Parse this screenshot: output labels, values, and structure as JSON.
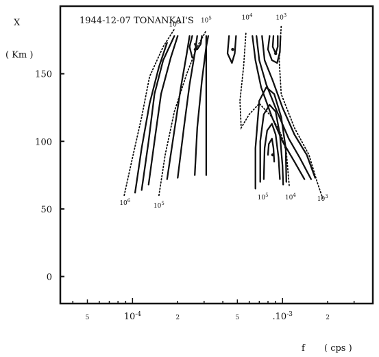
{
  "chart_data": {
    "type": "contour",
    "title": "1944-12-07  TONANKAI'S",
    "ylabel": "X",
    "ylabel_unit": "( Km )",
    "xlabel": "f",
    "xlabel_unit": "( cps )",
    "x_scale": "log",
    "ylim": [
      -20,
      200
    ],
    "y_ticks": [
      0,
      50,
      100,
      150
    ],
    "x_tick_labels": [
      "5",
      "10-4",
      "2",
      "5",
      ".10-3",
      "2"
    ],
    "x_ticks_cps": [
      5e-05,
      0.0001,
      0.0002,
      0.0005,
      0.001,
      0.002
    ],
    "xlim_cps": [
      3.3e-05,
      0.004
    ],
    "grid": false,
    "contour_levels": [
      1000,
      10000,
      100000,
      1000000
    ],
    "level_labels_top": [
      {
        "label": "106",
        "f": 0.00019,
        "x": 185
      },
      {
        "label": "105",
        "f": 0.00031,
        "x": 188
      },
      {
        "label": "104",
        "f": 0.00058,
        "x": 190
      },
      {
        "label": "103",
        "f": 0.00098,
        "x": 190
      }
    ],
    "level_labels_bottom": [
      {
        "label": "106",
        "f": 8.9e-05,
        "x": 53
      },
      {
        "label": "105",
        "f": 0.00015,
        "x": 51
      },
      {
        "label": "105",
        "f": 0.00074,
        "x": 57
      },
      {
        "label": "104",
        "f": 0.00113,
        "x": 57
      },
      {
        "label": "103",
        "f": 0.00185,
        "x": 56
      }
    ],
    "dashed_contours": [
      {
        "level": "106",
        "points": [
          [
            8.8e-05,
            60
          ],
          [
            0.0001,
            88
          ],
          [
            0.000115,
            118
          ],
          [
            0.00013,
            148
          ],
          [
            0.00016,
            170
          ],
          [
            0.00019,
            183
          ]
        ]
      },
      {
        "level": "105",
        "points": [
          [
            0.00015,
            60
          ],
          [
            0.000165,
            90
          ],
          [
            0.00019,
            122
          ],
          [
            0.00023,
            150
          ],
          [
            0.00027,
            170
          ],
          [
            0.00031,
            182
          ]
        ]
      },
      {
        "level": "104",
        "points": [
          [
            0.00057,
            180
          ],
          [
            0.00055,
            155
          ],
          [
            0.00052,
            130
          ],
          [
            0.00053,
            110
          ],
          [
            0.0006,
            120
          ],
          [
            0.0007,
            128
          ],
          [
            0.00085,
            118
          ],
          [
            0.00098,
            105
          ],
          [
            0.00106,
            92
          ],
          [
            0.00111,
            66
          ]
        ]
      },
      {
        "level": "103",
        "points": [
          [
            0.00098,
            185
          ],
          [
            0.00095,
            160
          ],
          [
            0.00098,
            135
          ],
          [
            0.0012,
            110
          ],
          [
            0.0015,
            90
          ],
          [
            0.0017,
            70
          ],
          [
            0.00185,
            58
          ]
        ]
      }
    ],
    "solid_contours": [
      {
        "points": [
          [
            0.000104,
            62
          ],
          [
            0.000115,
            95
          ],
          [
            0.00013,
            128
          ],
          [
            0.00015,
            155
          ],
          [
            0.00017,
            173
          ]
        ]
      },
      {
        "points": [
          [
            0.000115,
            64
          ],
          [
            0.000128,
            100
          ],
          [
            0.00014,
            135
          ],
          [
            0.00016,
            160
          ],
          [
            0.00019,
            178
          ]
        ]
      },
      {
        "points": [
          [
            0.000128,
            68
          ],
          [
            0.00014,
            100
          ],
          [
            0.000155,
            135
          ],
          [
            0.00018,
            162
          ],
          [
            0.0002,
            178
          ]
        ]
      },
      {
        "points": [
          [
            0.00017,
            72
          ],
          [
            0.00019,
            108
          ],
          [
            0.00021,
            140
          ],
          [
            0.00023,
            165
          ],
          [
            0.00024,
            178
          ]
        ]
      },
      {
        "points": [
          [
            0.0002,
            73
          ],
          [
            0.00022,
            110
          ],
          [
            0.00024,
            142
          ],
          [
            0.00026,
            165
          ],
          [
            0.00027,
            178
          ]
        ]
      },
      {
        "points": [
          [
            0.00026,
            75
          ],
          [
            0.00027,
            110
          ],
          [
            0.00029,
            145
          ],
          [
            0.00031,
            170
          ],
          [
            0.00032,
            178
          ]
        ]
      },
      {
        "points": [
          [
            0.00031,
            75
          ],
          [
            0.00031,
            178
          ]
        ]
      },
      {
        "points": [
          [
            0.00025,
            162
          ],
          [
            0.00024,
            170
          ],
          [
            0.00025,
            178
          ]
        ]
      },
      {
        "points": [
          [
            0.00026,
            172
          ],
          [
            0.00027,
            168
          ],
          [
            0.000285,
            172
          ],
          [
            0.00029,
            178
          ]
        ]
      },
      {
        "points": [
          [
            0.00044,
            178
          ],
          [
            0.00043,
            165
          ],
          [
            0.00046,
            158
          ],
          [
            0.00048,
            165
          ],
          [
            0.00049,
            178
          ]
        ]
      },
      {
        "points": [
          [
            0.00063,
            178
          ],
          [
            0.00066,
            160
          ],
          [
            0.00072,
            140
          ],
          [
            0.00085,
            118
          ],
          [
            0.001,
            100
          ],
          [
            0.0012,
            85
          ],
          [
            0.0014,
            72
          ]
        ]
      },
      {
        "points": [
          [
            0.00067,
            178
          ],
          [
            0.0007,
            160
          ],
          [
            0.00078,
            142
          ],
          [
            0.00092,
            122
          ],
          [
            0.0011,
            102
          ],
          [
            0.0013,
            88
          ],
          [
            0.00155,
            72
          ]
        ]
      },
      {
        "points": [
          [
            0.00073,
            178
          ],
          [
            0.00076,
            160
          ],
          [
            0.00086,
            145
          ],
          [
            0.001,
            125
          ],
          [
            0.0012,
            105
          ],
          [
            0.00145,
            90
          ],
          [
            0.00165,
            73
          ]
        ]
      },
      {
        "points": [
          [
            0.00082,
            178
          ],
          [
            0.0008,
            168
          ],
          [
            0.00085,
            160
          ],
          [
            0.00092,
            158
          ],
          [
            0.00096,
            166
          ],
          [
            0.00097,
            178
          ]
        ]
      },
      {
        "points": [
          [
            0.00087,
            178
          ],
          [
            0.00086,
            170
          ],
          [
            0.0009,
            165
          ],
          [
            0.00093,
            170
          ],
          [
            0.00093,
            178
          ]
        ]
      },
      {
        "points": [
          [
            0.00066,
            65
          ],
          [
            0.00066,
            95
          ],
          [
            0.0007,
            130
          ],
          [
            0.00078,
            140
          ],
          [
            0.00088,
            135
          ],
          [
            0.00098,
            118
          ],
          [
            0.00105,
            95
          ],
          [
            0.00106,
            70
          ]
        ]
      },
      {
        "points": [
          [
            0.00071,
            70
          ],
          [
            0.00071,
            100
          ],
          [
            0.00075,
            120
          ],
          [
            0.00082,
            127
          ],
          [
            0.0009,
            122
          ],
          [
            0.00096,
            105
          ],
          [
            0.001,
            82
          ],
          [
            0.00101,
            68
          ]
        ]
      },
      {
        "points": [
          [
            0.00075,
            72
          ],
          [
            0.00076,
            95
          ],
          [
            0.00079,
            108
          ],
          [
            0.00085,
            113
          ],
          [
            0.0009,
            105
          ],
          [
            0.00094,
            88
          ],
          [
            0.00096,
            72
          ]
        ]
      },
      {
        "points": [
          [
            0.0008,
            90
          ],
          [
            0.00081,
            98
          ],
          [
            0.00085,
            102
          ],
          [
            0.00087,
            95
          ],
          [
            0.00088,
            85
          ]
        ]
      }
    ],
    "marks": [
      {
        "f": 0.000262,
        "x": 168
      },
      {
        "f": 0.000465,
        "x": 168
      },
      {
        "f": 0.0009,
        "x": 165
      },
      {
        "f": 0.00086,
        "x": 90
      }
    ]
  }
}
